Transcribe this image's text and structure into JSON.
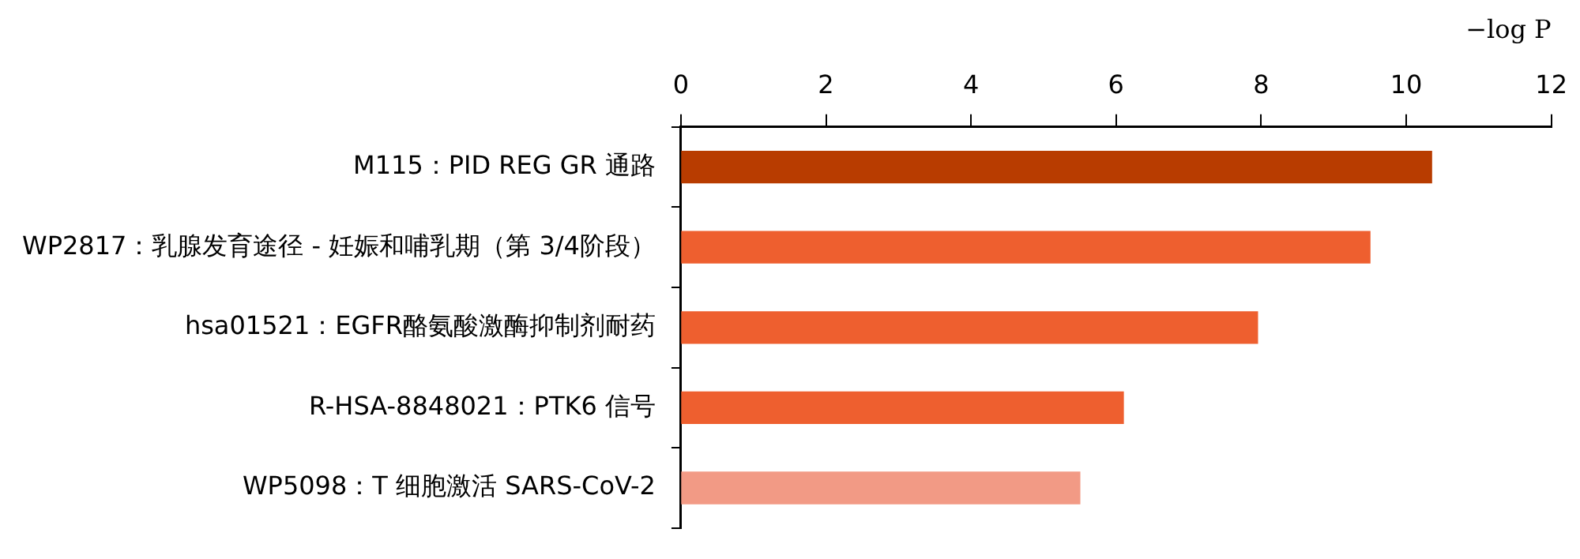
{
  "chart_data": {
    "type": "bar",
    "orientation": "horizontal",
    "xlabel": "−log P",
    "categories": [
      "M115：PID REG GR 通路",
      "WP2817：乳腺发育途径 - 妊娠和哺乳期（第 3/4阶段）",
      "hsa01521：EGFR酪氨酸激酶抑制剂耐药",
      "R-HSA-8848021：PTK6 信号",
      "WP5098：T 细胞激活 SARS-CoV-2"
    ],
    "values": [
      10.35,
      9.5,
      7.95,
      6.1,
      5.5
    ],
    "colors": [
      "#b83c00",
      "#ee5f2f",
      "#ee5f2f",
      "#ee5f2f",
      "#f29a85"
    ],
    "xlim": [
      0,
      12
    ],
    "xticks": [
      0,
      2,
      4,
      6,
      8,
      10,
      12
    ],
    "grid": false,
    "legend": false
  }
}
